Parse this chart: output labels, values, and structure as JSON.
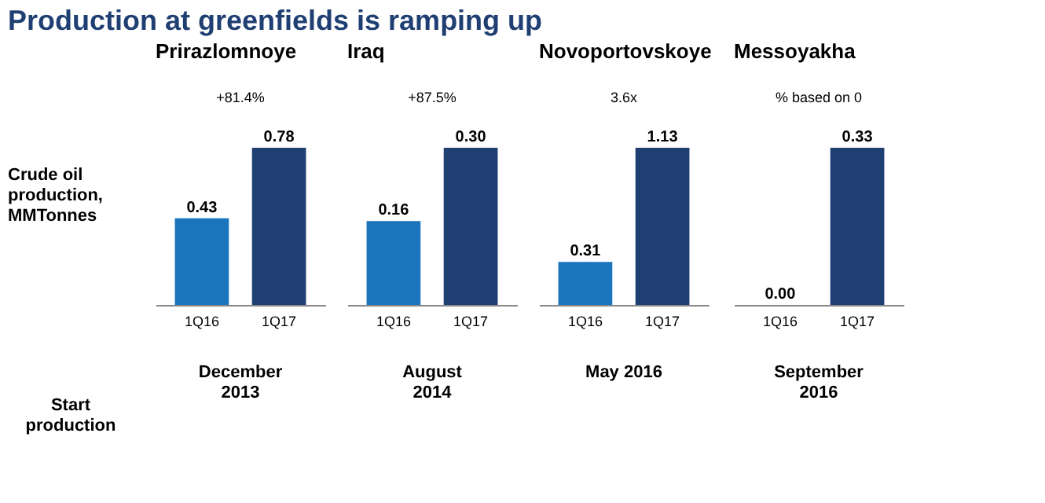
{
  "chart_data": [
    {
      "type": "bar",
      "title": "Production at greenfields is ramping up",
      "subtitle": "Prirazlomnoye",
      "ylabel": "Crude oil production, MMTonnes",
      "categories": [
        "1Q16",
        "1Q17"
      ],
      "values": [
        0.43,
        0.78
      ],
      "value_labels": [
        "0.43",
        "0.78"
      ],
      "colors": [
        "#1b75bc",
        "#1f3f73"
      ],
      "annotations": [
        "+81.4%",
        "December 2013",
        "Start production"
      ]
    },
    {
      "type": "bar",
      "subtitle": "Iraq",
      "categories": [
        "1Q16",
        "1Q17"
      ],
      "values": [
        0.16,
        0.3
      ],
      "value_labels": [
        "0.16",
        "0.30"
      ],
      "colors": [
        "#1b75bc",
        "#1f3f73"
      ],
      "annotations": [
        "+87.5%",
        "August 2014"
      ]
    },
    {
      "type": "bar",
      "subtitle": "Novoportovskoye",
      "categories": [
        "1Q16",
        "1Q17"
      ],
      "values": [
        0.31,
        1.13
      ],
      "value_labels": [
        "0.31",
        "1.13"
      ],
      "colors": [
        "#1b75bc",
        "#1f3f73"
      ],
      "annotations": [
        "3.6x",
        "May 2016"
      ]
    },
    {
      "type": "bar",
      "subtitle": "Messoyakha",
      "categories": [
        "1Q16",
        "1Q17"
      ],
      "values": [
        0.0,
        0.33
      ],
      "value_labels": [
        "0.00",
        "0.33"
      ],
      "colors": [
        "#1b75bc",
        "#1f3f73"
      ],
      "annotations": [
        "% based on 0",
        "September 2016"
      ]
    }
  ]
}
